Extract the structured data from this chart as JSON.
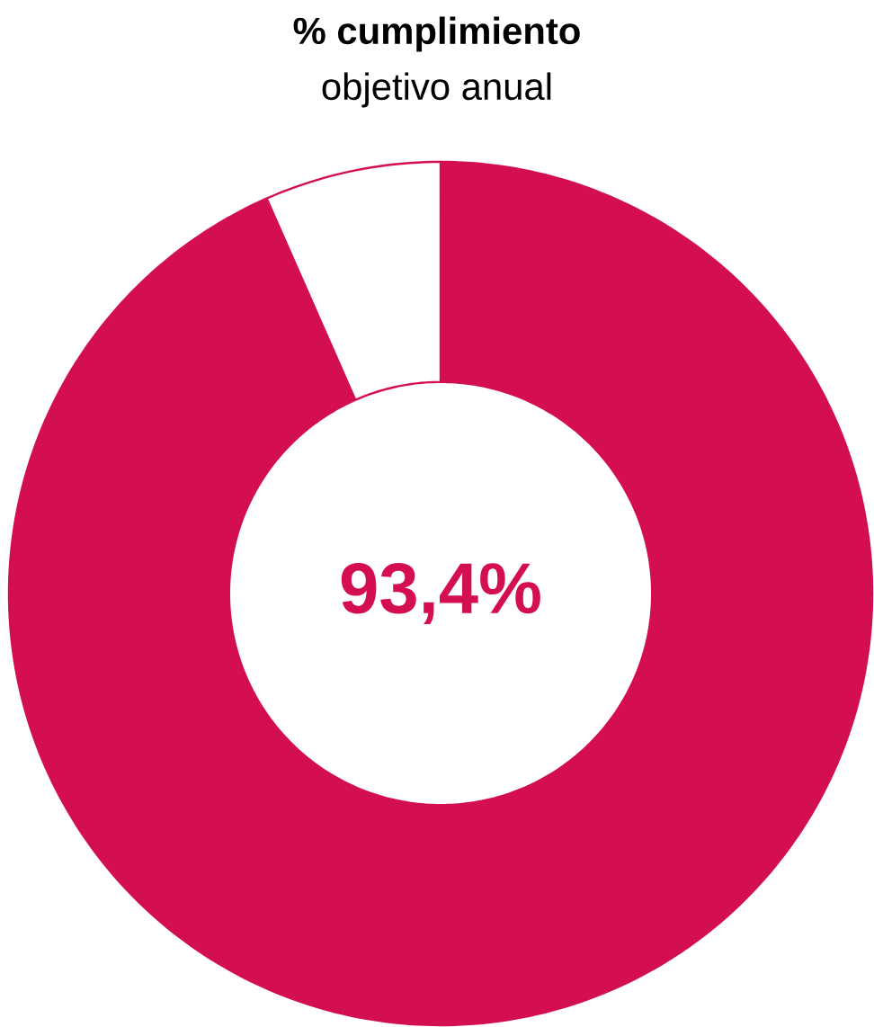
{
  "chart_data": {
    "type": "donut",
    "title": "% cumplimiento",
    "subtitle": "objetivo anual",
    "categories": [
      null,
      null
    ],
    "values": [
      93.4,
      6.6
    ],
    "colors": [
      "#d40e52",
      "#ffffff"
    ],
    "annotations": [
      "93,4%"
    ]
  }
}
